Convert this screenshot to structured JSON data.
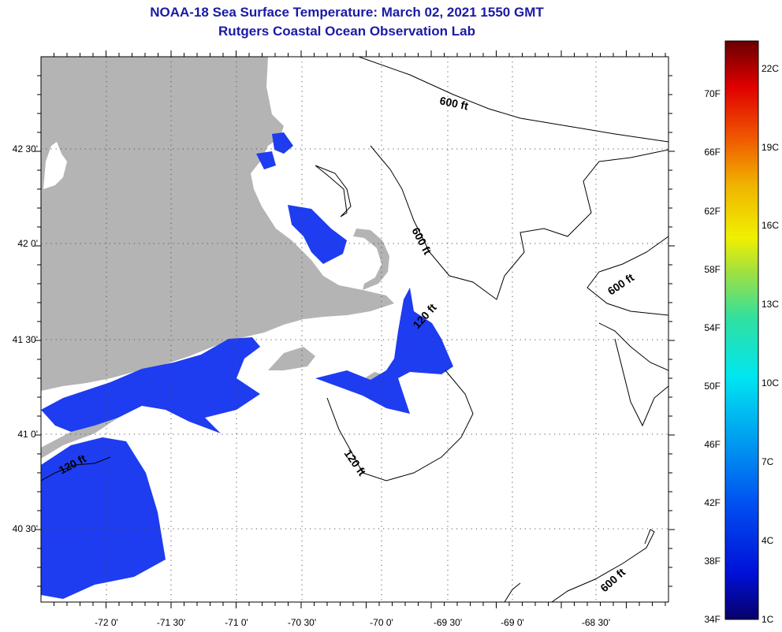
{
  "title": {
    "line1": "NOAA-18 Sea Surface Temperature:  March 02, 2021 1550 GMT",
    "line2": "Rutgers Coastal Ocean Observation Lab"
  },
  "map": {
    "lon_labels": [
      "-72 0'",
      "-71 30'",
      "-71 0'",
      "-70 30'",
      "-70 0'",
      "-69 30'",
      "-69 0'",
      "-68 30'"
    ],
    "lat_labels": [
      "42 30'",
      "42 0'",
      "41 30'",
      "41 0'",
      "40 30'"
    ],
    "contour_labels": [
      "600 ft",
      "600 ft",
      "600 ft",
      "600 ft",
      "120 ft",
      "120 ft",
      "120 ft"
    ],
    "colors": {
      "land": "#b4b4b4",
      "water": "#ffffff",
      "sst": "#1e3cf0",
      "grid": "#555555"
    }
  },
  "colorbar": {
    "fahrenheit_labels": [
      "70F",
      "66F",
      "62F",
      "58F",
      "54F",
      "50F",
      "46F",
      "42F",
      "38F",
      "34F"
    ],
    "celsius_labels": [
      "22C",
      "19C",
      "16C",
      "13C",
      "10C",
      "7C",
      "4C",
      "1C"
    ]
  }
}
